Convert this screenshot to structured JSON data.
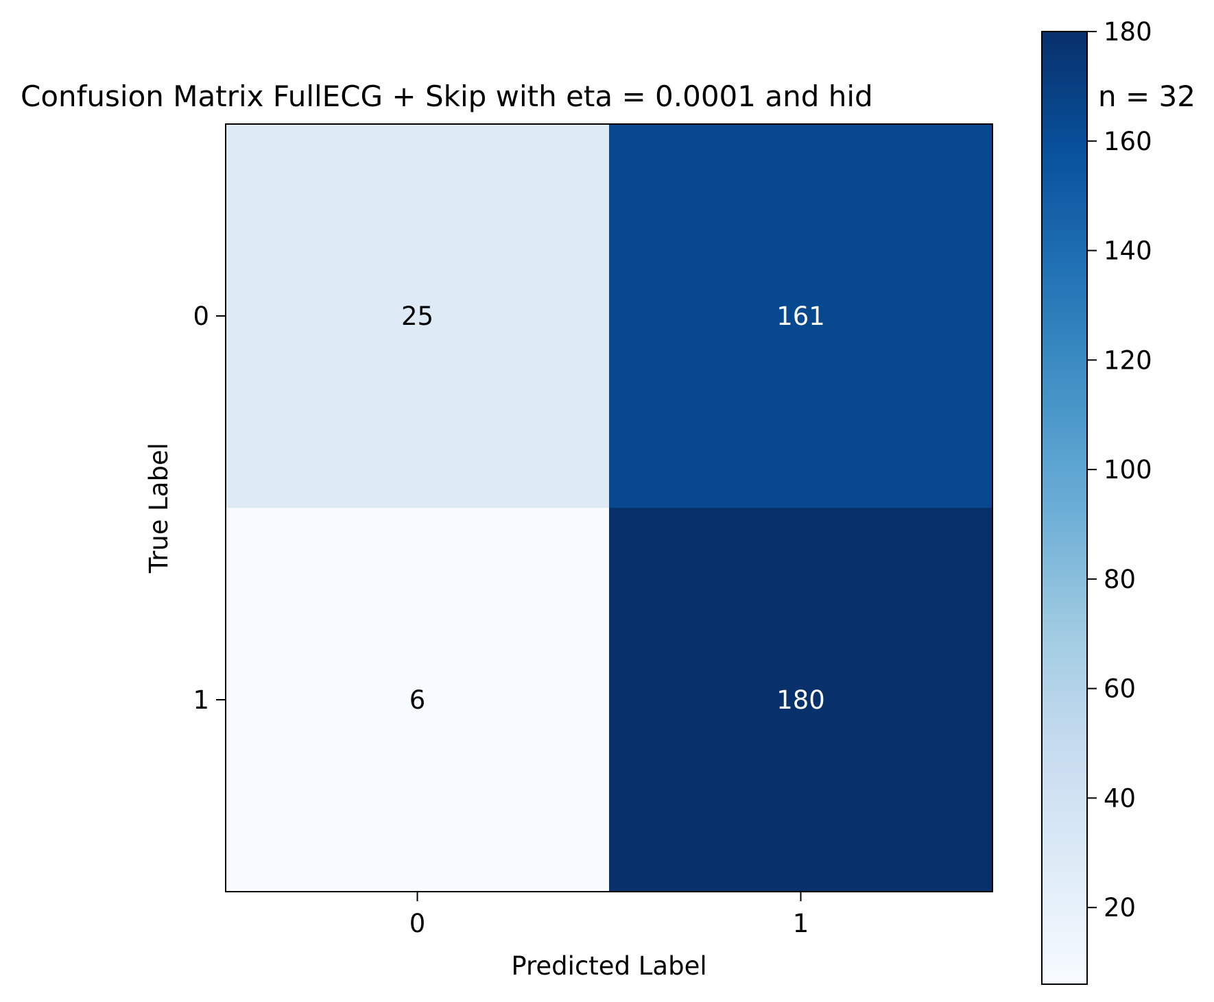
{
  "chart_data": {
    "type": "heatmap",
    "title": "Confusion Matrix FullECG + Skip with eta = 0.0001 and hid",
    "title_tail": "n = 32",
    "xlabel": "Predicted Label",
    "ylabel": "True Label",
    "x_categories": [
      "0",
      "1"
    ],
    "y_categories": [
      "0",
      "1"
    ],
    "matrix": [
      [
        25,
        161
      ],
      [
        6,
        180
      ]
    ],
    "colormap": "Blues",
    "colorbar": {
      "range": [
        6,
        180
      ],
      "ticks": [
        "20",
        "40",
        "60",
        "80",
        "100",
        "120",
        "140",
        "160",
        "180"
      ]
    },
    "colors": {
      "cell_0_0": "#deebf7",
      "cell_0_1": "#08488e",
      "cell_1_0": "#f7fbff",
      "cell_1_1": "#08306b",
      "text_light_bg": "#000000",
      "text_dark_bg": "#ffffff"
    }
  }
}
